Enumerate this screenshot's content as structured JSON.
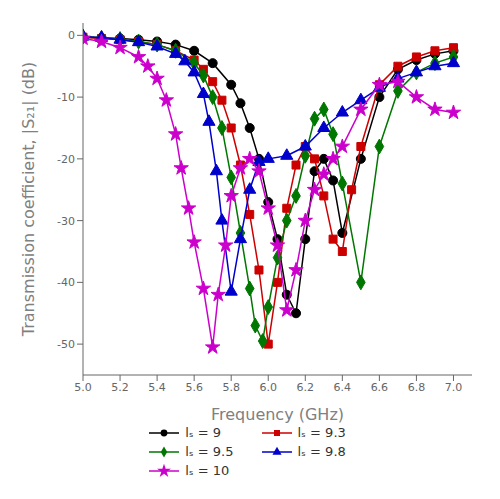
{
  "chart_data": {
    "type": "line",
    "xlabel": "Frequency (GHz)",
    "ylabel": "Transmission coefficient, |S₂₁| (dB)",
    "xlim": [
      5.0,
      7.1
    ],
    "ylim": [
      -55,
      2
    ],
    "xticks": [
      {
        "value": 5.0,
        "label": "5.0"
      },
      5.2,
      5.4,
      5.6,
      5.8,
      {
        "value": 6.0,
        "label": "6.0"
      },
      6.2,
      6.4,
      6.6,
      6.8,
      {
        "value": 7.0,
        "label": "7.0"
      }
    ],
    "yticks": [
      0,
      -10,
      -20,
      -30,
      -40,
      -50
    ],
    "grid": false,
    "legend": "bottom",
    "series": [
      {
        "name": "lₛ = 9",
        "color": "#000000",
        "marker": "circle",
        "x": [
          5.0,
          5.1,
          5.2,
          5.3,
          5.4,
          5.5,
          5.6,
          5.7,
          5.8,
          5.85,
          5.9,
          5.95,
          6.0,
          6.05,
          6.1,
          6.15,
          6.2,
          6.25,
          6.3,
          6.35,
          6.4,
          6.5,
          6.6,
          6.7,
          6.8,
          6.9,
          7.0
        ],
        "values": [
          -0.3,
          -0.4,
          -0.5,
          -0.7,
          -1.0,
          -1.5,
          -2.5,
          -4.5,
          -8.0,
          -11.0,
          -15.0,
          -20.0,
          -27.0,
          -33.0,
          -42.0,
          -45.0,
          -33.0,
          -22.0,
          -20.0,
          -23.5,
          -32.0,
          -20.0,
          -10.0,
          -5.5,
          -4.0,
          -3.0,
          -2.5
        ]
      },
      {
        "name": "lₛ = 9.3",
        "color": "#cc0000",
        "marker": "square",
        "x": [
          5.0,
          5.1,
          5.2,
          5.3,
          5.4,
          5.5,
          5.6,
          5.65,
          5.7,
          5.75,
          5.8,
          5.85,
          5.9,
          5.95,
          6.0,
          6.05,
          6.1,
          6.15,
          6.2,
          6.25,
          6.3,
          6.35,
          6.4,
          6.45,
          6.5,
          6.6,
          6.7,
          6.8,
          6.9,
          7.0
        ],
        "values": [
          -0.3,
          -0.5,
          -0.7,
          -1.0,
          -1.5,
          -2.5,
          -4.0,
          -5.5,
          -7.5,
          -10.5,
          -15.0,
          -21.0,
          -29.0,
          -38.0,
          -50.0,
          -40.0,
          -28.0,
          -21.0,
          -18.0,
          -20.0,
          -26.0,
          -33.0,
          -35.0,
          -25.0,
          -18.0,
          -8.0,
          -5.0,
          -3.5,
          -2.5,
          -2.0
        ]
      },
      {
        "name": "lₛ = 9.5",
        "color": "#007700",
        "marker": "diamond",
        "x": [
          5.0,
          5.1,
          5.2,
          5.3,
          5.4,
          5.5,
          5.6,
          5.65,
          5.7,
          5.75,
          5.8,
          5.85,
          5.9,
          5.93,
          5.97,
          6.0,
          6.05,
          6.1,
          6.15,
          6.2,
          6.25,
          6.3,
          6.35,
          6.4,
          6.5,
          6.6,
          6.7,
          6.8,
          6.9,
          7.0
        ],
        "values": [
          -0.2,
          -0.4,
          -0.6,
          -1.0,
          -1.5,
          -2.5,
          -4.5,
          -6.5,
          -10.0,
          -15.0,
          -23.0,
          -32.0,
          -41.0,
          -47.0,
          -49.5,
          -44.0,
          -36.0,
          -30.0,
          -26.0,
          -19.5,
          -13.5,
          -12.0,
          -16.0,
          -24.0,
          -40.0,
          -18.0,
          -9.0,
          -6.0,
          -4.5,
          -3.5
        ]
      },
      {
        "name": "lₛ = 9.8",
        "color": "#0000cc",
        "marker": "triangle",
        "x": [
          5.0,
          5.1,
          5.2,
          5.3,
          5.4,
          5.5,
          5.55,
          5.6,
          5.65,
          5.68,
          5.72,
          5.75,
          5.8,
          5.85,
          5.9,
          5.95,
          6.0,
          6.1,
          6.2,
          6.3,
          6.4,
          6.5,
          6.6,
          6.7,
          6.8,
          6.9,
          7.0
        ],
        "values": [
          -0.2,
          -0.4,
          -0.7,
          -1.1,
          -1.8,
          -3.0,
          -4.2,
          -6.0,
          -9.5,
          -14.0,
          -22.0,
          -30.0,
          -41.5,
          -33.0,
          -25.0,
          -20.5,
          -20.0,
          -19.5,
          -18.0,
          -15.0,
          -12.5,
          -10.5,
          -8.5,
          -7.0,
          -6.0,
          -5.0,
          -4.5
        ]
      },
      {
        "name": "lₛ = 10",
        "color": "#cc00cc",
        "marker": "star",
        "x": [
          5.0,
          5.1,
          5.2,
          5.3,
          5.35,
          5.4,
          5.45,
          5.5,
          5.53,
          5.57,
          5.6,
          5.65,
          5.7,
          5.73,
          5.77,
          5.8,
          5.85,
          5.9,
          5.95,
          6.0,
          6.05,
          6.1,
          6.15,
          6.2,
          6.25,
          6.3,
          6.35,
          6.4,
          6.5,
          6.6,
          6.7,
          6.8,
          6.9,
          7.0
        ],
        "values": [
          -0.5,
          -1.0,
          -2.0,
          -3.5,
          -5.0,
          -7.0,
          -10.5,
          -16.0,
          -21.5,
          -28.0,
          -33.5,
          -41.0,
          -50.5,
          -42.0,
          -34.0,
          -26.0,
          -21.5,
          -20.0,
          -22.0,
          -28.0,
          -34.0,
          -44.5,
          -38.0,
          -30.0,
          -25.0,
          -22.5,
          -20.0,
          -18.0,
          -12.0,
          -8.0,
          -7.5,
          -10.0,
          -12.0,
          -12.5
        ]
      }
    ]
  }
}
